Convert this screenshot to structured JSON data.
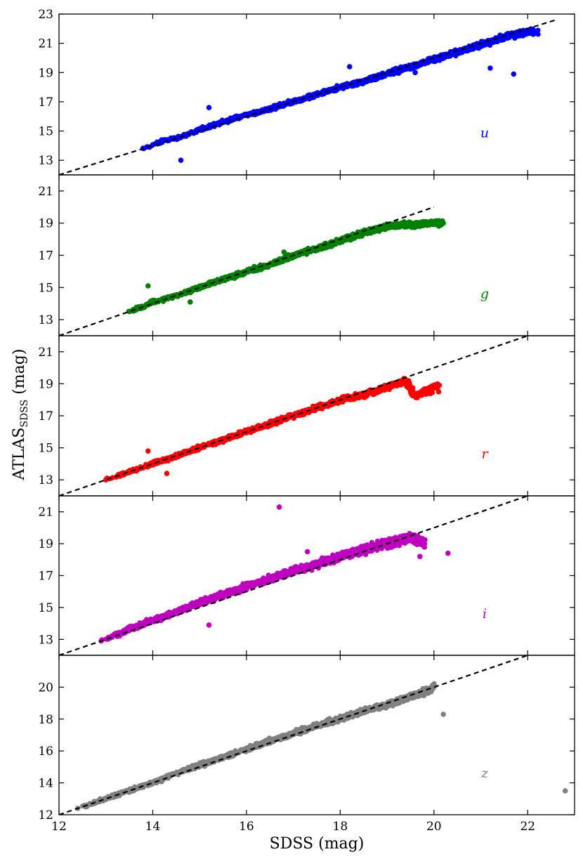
{
  "figure": {
    "xlabel": "SDSS (mag)",
    "ylabel_main": "ATLAS",
    "ylabel_sub": "SDSS",
    "ylabel_unit": " (mag)"
  },
  "chart_data": [
    {
      "type": "scatter",
      "band": "u",
      "color": "#0000ff",
      "xlim": [
        12,
        23
      ],
      "ylim": [
        12,
        23
      ],
      "yticks": [
        13,
        15,
        17,
        19,
        21,
        23
      ],
      "trend": "points lie close to the 1:1 line, denser above 18; a short clump near x≈15.2 reaches y≈16.6",
      "series": [
        {
          "x": [
            13.8,
            14.3,
            14.6,
            15.0,
            15.2,
            15.6,
            16.0,
            16.5,
            17.0,
            17.5,
            18.0,
            18.5,
            19.0,
            19.5,
            20.0,
            20.5,
            21.0,
            21.5,
            22.0,
            22.2,
            14.6,
            15.2,
            18.2,
            19.6,
            21.7,
            21.2
          ],
          "y": [
            13.8,
            14.4,
            14.6,
            15.1,
            15.3,
            15.7,
            16.1,
            16.5,
            17.0,
            17.5,
            18.0,
            18.4,
            18.9,
            19.4,
            19.9,
            20.4,
            20.9,
            21.4,
            21.8,
            21.8,
            13.0,
            16.6,
            19.4,
            19.0,
            18.9,
            19.3
          ]
        }
      ],
      "reference_line": {
        "x": [
          12,
          22.6
        ],
        "y": [
          12,
          22.6
        ],
        "style": "dashed",
        "color": "#000000"
      }
    },
    {
      "type": "scatter",
      "band": "g",
      "color": "#008000",
      "xlim": [
        12,
        23
      ],
      "ylim": [
        12,
        22
      ],
      "yticks": [
        13,
        15,
        17,
        19,
        21
      ],
      "trend": "points follow the 1:1 line up to ~19, then flatten near y≈19 out to x≈20.3",
      "series": [
        {
          "x": [
            13.5,
            13.8,
            14.0,
            14.5,
            15.0,
            15.5,
            16.0,
            16.5,
            17.0,
            17.5,
            18.0,
            18.5,
            19.0,
            19.3,
            19.6,
            19.9,
            20.2,
            13.9,
            14.8,
            16.8
          ],
          "y": [
            13.5,
            13.8,
            14.1,
            14.5,
            15.0,
            15.5,
            16.0,
            16.4,
            17.0,
            17.4,
            17.9,
            18.4,
            18.8,
            18.9,
            18.9,
            19.0,
            19.0,
            15.1,
            14.1,
            17.2
          ]
        }
      ],
      "reference_line": {
        "x": [
          12,
          20.0
        ],
        "y": [
          12,
          20.0
        ],
        "style": "dashed",
        "color": "#000000"
      }
    },
    {
      "type": "scatter",
      "band": "r",
      "color": "#ff0000",
      "xlim": [
        12,
        23
      ],
      "ylim": [
        12,
        22
      ],
      "yticks": [
        13,
        15,
        17,
        19,
        21
      ],
      "trend": "tight cloud along the 1:1 line from ~13 to ~19.5, slightly below it past 18.5",
      "series": [
        {
          "x": [
            13.0,
            13.5,
            14.0,
            14.5,
            15.0,
            15.5,
            16.0,
            16.5,
            17.0,
            17.5,
            18.0,
            18.5,
            19.0,
            19.4,
            19.6,
            20.1,
            20.1,
            14.3,
            13.9
          ],
          "y": [
            13.0,
            13.5,
            14.0,
            14.5,
            15.0,
            15.5,
            16.0,
            16.5,
            17.0,
            17.5,
            18.0,
            18.3,
            18.8,
            19.2,
            18.2,
            18.9,
            18.5,
            13.4,
            14.8
          ]
        }
      ],
      "reference_line": {
        "x": [
          12,
          22.0
        ],
        "y": [
          12,
          22.0
        ],
        "style": "dashed",
        "color": "#000000"
      }
    },
    {
      "type": "scatter",
      "band": "i",
      "color": "#bf00bf",
      "xlim": [
        12,
        23
      ],
      "ylim": [
        12,
        22
      ],
      "yticks": [
        13,
        15,
        17,
        19,
        21
      ],
      "trend": "broad cloud along and slightly above the 1:1 line from ~12.9 to ~19.7; one outlier at (16.7, 21.3)",
      "series": [
        {
          "x": [
            12.9,
            13.5,
            14.0,
            14.5,
            15.0,
            15.5,
            16.0,
            16.5,
            17.0,
            17.5,
            18.0,
            18.5,
            19.0,
            19.5,
            19.7,
            19.8,
            20.3,
            16.7,
            17.3,
            15.2
          ],
          "y": [
            12.9,
            13.6,
            14.2,
            14.7,
            15.3,
            15.8,
            16.3,
            16.8,
            17.3,
            17.7,
            18.2,
            18.6,
            19.0,
            19.4,
            18.2,
            19.0,
            18.4,
            21.3,
            18.5,
            13.9
          ]
        }
      ],
      "reference_line": {
        "x": [
          12,
          22.0
        ],
        "y": [
          12,
          22.0
        ],
        "style": "dashed",
        "color": "#000000"
      }
    },
    {
      "type": "scatter",
      "band": "z",
      "color": "#808080",
      "xlim": [
        12,
        23
      ],
      "ylim": [
        12,
        22
      ],
      "yticks": [
        12,
        14,
        16,
        18,
        20
      ],
      "trend": "tight cloud along the 1:1 line from ~12.4 to ~20; outliers at (20.2, 18.3) and (22.8, 13.5)",
      "series": [
        {
          "x": [
            12.4,
            13.0,
            13.5,
            14.0,
            14.5,
            15.0,
            15.5,
            16.0,
            16.5,
            17.0,
            17.5,
            18.0,
            18.5,
            19.0,
            19.5,
            19.9,
            20.0,
            20.2,
            22.8
          ],
          "y": [
            12.4,
            13.0,
            13.5,
            14.0,
            14.6,
            15.1,
            15.6,
            16.1,
            16.6,
            17.1,
            17.6,
            18.0,
            18.5,
            18.9,
            19.4,
            19.8,
            20.1,
            18.3,
            13.5
          ]
        }
      ],
      "reference_line": {
        "x": [
          12,
          22.0
        ],
        "y": [
          12,
          22.0
        ],
        "style": "dashed",
        "color": "#000000"
      }
    }
  ],
  "x_axis": {
    "ticks": [
      12,
      14,
      16,
      18,
      20,
      22
    ]
  }
}
